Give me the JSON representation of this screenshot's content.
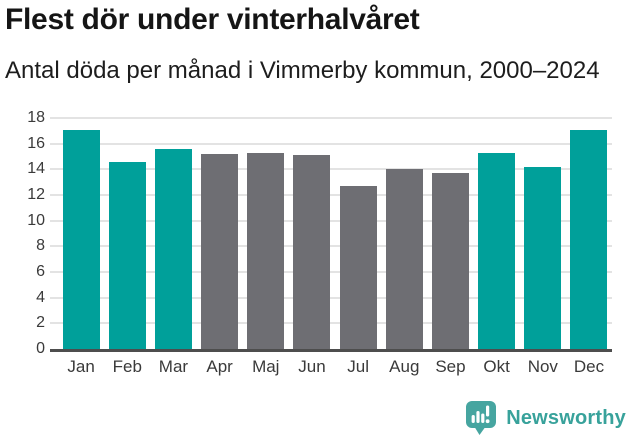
{
  "chart_data": {
    "type": "bar",
    "title": "Flest dör under vinterhalvåret",
    "subtitle": "Antal döda per månad i Vimmerby kommun, 2000–2024",
    "categories": [
      "Jan",
      "Feb",
      "Mar",
      "Apr",
      "Maj",
      "Jun",
      "Jul",
      "Aug",
      "Sep",
      "Okt",
      "Nov",
      "Dec"
    ],
    "values": [
      17.1,
      14.6,
      15.6,
      15.2,
      15.3,
      15.1,
      12.7,
      14.0,
      13.7,
      15.3,
      14.2,
      17.1
    ],
    "bar_colors": [
      "teal",
      "teal",
      "teal",
      "gray",
      "gray",
      "gray",
      "gray",
      "gray",
      "gray",
      "teal",
      "teal",
      "teal"
    ],
    "palette": {
      "teal": "#00a09a",
      "gray": "#6e6e73"
    },
    "ylim": [
      0,
      18
    ],
    "yticks": [
      0,
      2,
      4,
      6,
      8,
      10,
      12,
      14,
      16,
      18
    ],
    "xlabel": "",
    "ylabel": "",
    "grid": "horizontal",
    "legend": "none",
    "gridline_color": "#e3e3e3",
    "axis_line_color": "#4d4d4d"
  },
  "footer": {
    "brand": "Newsworthy",
    "logo_icon": "speech-bubble-with-bar-chart-and-exclamation",
    "logo_color": "#46a5a0",
    "text_color": "#38a29b"
  }
}
